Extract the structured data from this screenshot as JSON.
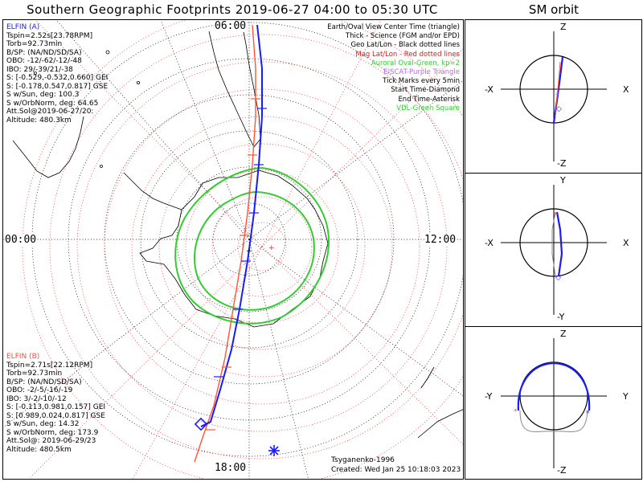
{
  "title": "Southern Geographic Footprints 2019-06-27 04:00 to 05:30 UTC",
  "sm_title": "SM orbit",
  "colors": {
    "elfin_a": "#1a1aff",
    "elfin_b": "#ff4a3a",
    "oval": "#33cc33",
    "grid_geo": "#000000",
    "grid_mag": "#ee2222"
  },
  "clock_labels": {
    "top": "06:00",
    "left": "00:00",
    "right": "12:00",
    "bottom": "18:00"
  },
  "legend": [
    "Earth/Oval View Center Time (triangle)",
    "Thick - Science (FGM and/or EPD)",
    "Geo Lat/Lon - Black dotted lines",
    "Mag Lat/Lon - Red dotted lines",
    "Auroral Oval-Green, kp=2",
    "EISCAT-Purple Triangle",
    "Tick Marks every 5min",
    "Start Time-Diamond",
    "End Time-Asterisk",
    "VDL-Green Square"
  ],
  "elfin_a": {
    "name": "ELFIN (A)",
    "lines": [
      "Tspin=2.52s[23.78RPM]",
      "Torb=92.73min",
      "B/SP: (NA/ND/SD/SA)",
      "OBO: -12/-62/-12/-48",
      "IBO: 29/-39/21/-38",
      "S: [-0.529,-0.532,0.660] GEI",
      "S: [-0.178,0.547,0.817] GSE",
      "S w/Sun, deg: 100.3",
      "S w/OrbNorm, deg: 64.65",
      "Att.Sol@2019-06-27/20:",
      "Altitude: 480.3km"
    ]
  },
  "elfin_b": {
    "name": "ELFIN (B)",
    "lines": [
      "Tspin=2.71s[22.12RPM]",
      "Torb=92.73min",
      "B/SP: (NA/ND/SD/SA)",
      "OBO: -2/-5/-16/-19",
      "IBO: 3/-2/-10/-12",
      "S: [-0.113,0.981,0.157] GEI",
      "S: [0.989,0.024,0.817] GSE",
      "S w/Sun, deg: 14.32",
      "S w/OrbNorm, deg: 173.9",
      "Att.Sol@: 2019-06-29/23",
      "Altitude: 480.5km"
    ]
  },
  "footer": {
    "model": "Tsyganenko-1996",
    "created": "Created: Wed Jan 25 10:18:03 2023"
  },
  "sm_panels": [
    {
      "name": "xz-view",
      "top": "Z",
      "bottom": "-Z",
      "left": "-X",
      "right": "X"
    },
    {
      "name": "xy-view",
      "top": "Y",
      "bottom": "-Y",
      "left": "-X",
      "right": "X"
    },
    {
      "name": "yz-view",
      "top": "Z",
      "bottom": "-Z",
      "left": "-Y",
      "right": "Y"
    }
  ]
}
